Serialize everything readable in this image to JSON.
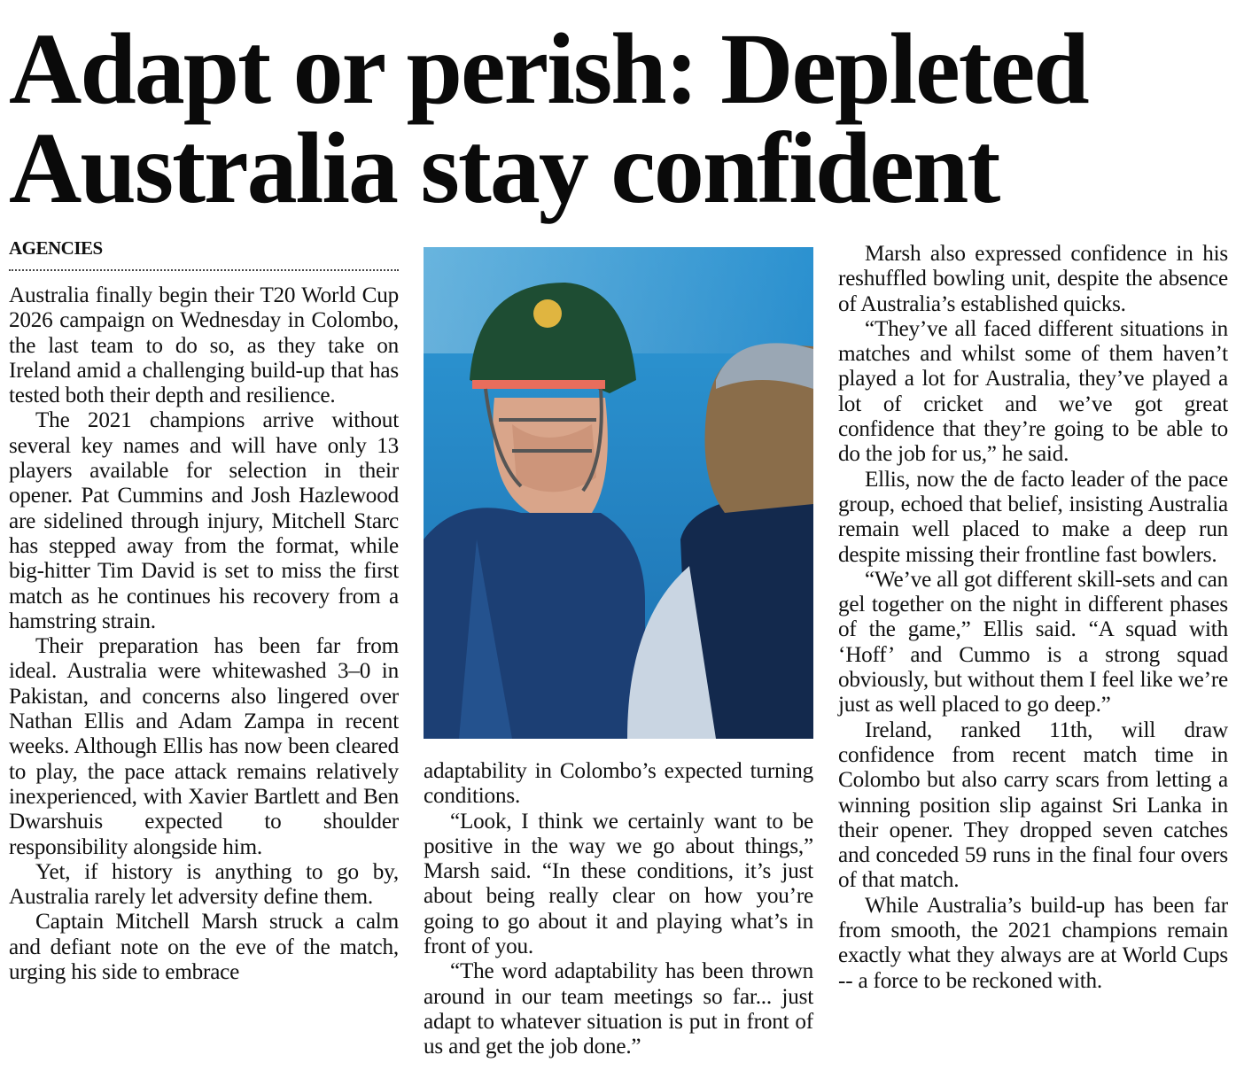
{
  "headline": {
    "line1": "Adapt or perish: Depleted",
    "line2": "Australia stay confident"
  },
  "byline": "AGENCIES",
  "photo": {
    "description_icon": "cricket-players-photo"
  },
  "column1": [
    "Australia finally begin their T20 World Cup 2026 campaign on Wednesday in Colombo, the last team to do so, as they take on Ireland amid a challenging build-up that has tested both their depth and resilience.",
    "The 2021 champions arrive without several key names and will have only 13 players available for selection in their opener. Pat Cummins and Josh Hazlewood are sidelined through injury, Mitchell Starc has stepped away from the format, while big-hitter Tim David is set to miss the first match as he continues his recovery from a hamstring strain.",
    "Their preparation has been far from ideal. Australia were whitewashed 3–0 in Pakistan, and concerns also lingered over Nathan Ellis and Adam Zampa in recent weeks. Although Ellis has now been cleared to play, the pace attack remains relatively inexperienced, with Xavier Bartlett and Ben Dwarshuis expected to shoulder responsibility alongside him.",
    "Yet, if history is anything to go by, Australia rarely let adversity define them.",
    "Captain Mitchell Marsh struck a calm and defiant note on the eve of the match, urging his side to embrace"
  ],
  "column2": [
    "adaptability in Colombo’s expected turning conditions.",
    "“Look, I think we certainly want to be positive in the way we go about things,” Marsh said. “In these conditions, it’s just about being really clear on how you’re going to go about it and playing what’s in front of you.",
    "“The word adaptability has been thrown around in our team meetings so far... just adapt to whatever situation is put in front of us and get the job done.”"
  ],
  "column3": [
    "Marsh also expressed confidence in his reshuffled bowling unit, despite the absence of Australia’s established quicks.",
    "“They’ve all faced different situations in matches and whilst some of them haven’t played a lot for Australia, they’ve played a lot of cricket and we’ve got great confidence that they’re going to be able to do the job for us,” he said.",
    "Ellis, now the de facto leader of the pace group, echoed that belief, insisting Australia remain well placed to make a deep run despite missing their frontline fast bowlers.",
    "“We’ve all got different skill-sets and can gel together on the night in different phases of the game,” Ellis said. “A squad with ‘Hoff’ and Cummo is a strong squad obviously, but without them I feel like we’re just as well placed to go deep.”",
    "Ireland, ranked 11th, will draw confidence from recent match time in Colombo but also carry scars from letting a winning position slip against Sri Lanka in their opener. They dropped seven catches and conceded 59 runs in the final four overs of that match.",
    "While Australia’s build-up has been far from smooth, the 2021 champions remain exactly what they always are at World Cups -- a force to be reckoned with."
  ]
}
